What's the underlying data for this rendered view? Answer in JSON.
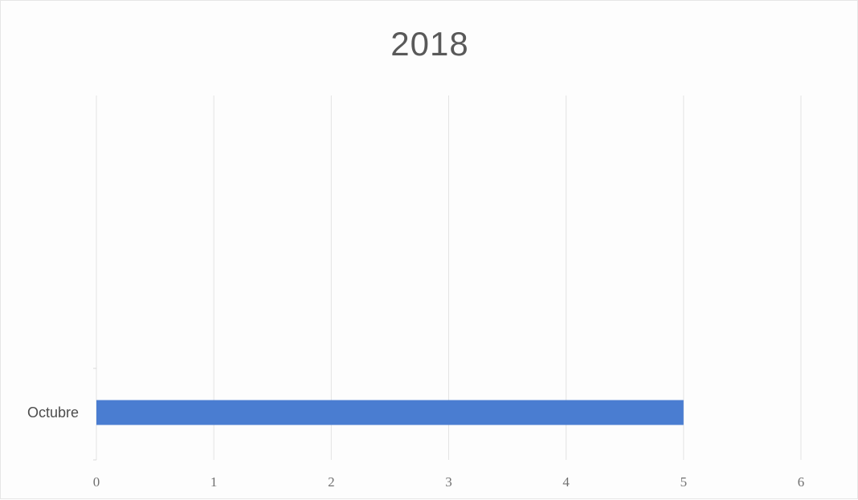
{
  "chart_data": {
    "type": "bar",
    "orientation": "horizontal",
    "title": "2018",
    "categories": [
      "Octubre"
    ],
    "values": [
      5
    ],
    "xlim": [
      0,
      6
    ],
    "x_ticks": [
      "0",
      "1",
      "2",
      "3",
      "4",
      "5",
      "6"
    ],
    "xlabel": "",
    "ylabel": "",
    "grid": true,
    "legend": "none",
    "bar_color": "#4a7dd1",
    "gridline_color": "#e3e3e3",
    "text_color": "#595959"
  }
}
